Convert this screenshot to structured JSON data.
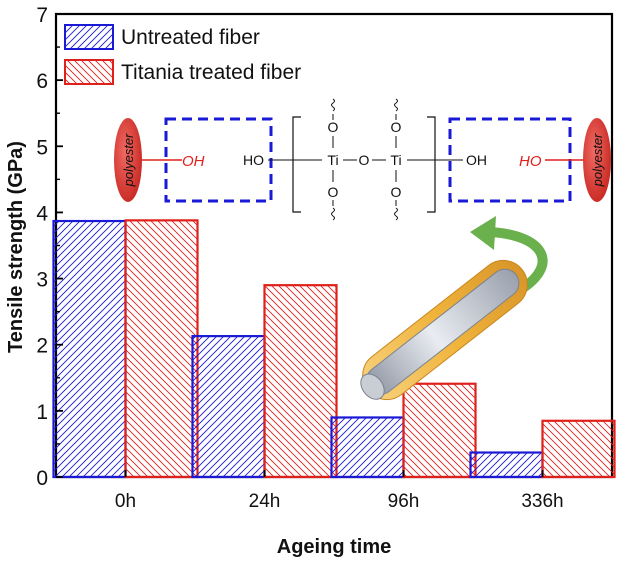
{
  "chart_data": {
    "type": "bar",
    "categories": [
      "0h",
      "24h",
      "96h",
      "336h"
    ],
    "series": [
      {
        "name": "Untreated fiber",
        "values": [
          3.87,
          2.13,
          0.9,
          0.37
        ],
        "color": "#1a1ad6",
        "hatch": "forward"
      },
      {
        "name": "Titania treated fiber",
        "values": [
          3.88,
          2.9,
          1.41,
          0.85
        ],
        "color": "#e0201b",
        "hatch": "backward"
      }
    ],
    "xlabel": "Ageing time",
    "ylabel": "Tensile strength (GPa)",
    "ylim": [
      0,
      7
    ],
    "yticks": [
      0,
      1,
      2,
      3,
      4,
      5,
      6,
      7
    ],
    "legend_position": "top-left",
    "grid": false
  },
  "inset": {
    "left_group": {
      "blob_label": "polyester",
      "bond_label": "OH"
    },
    "right_group": {
      "blob_label": "polyester",
      "bond_label": "HO"
    },
    "formula": {
      "left_end": "HO",
      "right_end": "OH",
      "metal_1": "Ti",
      "metal_2": "Ti",
      "bridge": "O",
      "top_oxygen_1": "O",
      "top_oxygen_2": "O",
      "bottom_oxygen_1": "O",
      "bottom_oxygen_2": "O"
    },
    "fiber_colors": {
      "core": "#a7adb8",
      "coating": "#f0b43c",
      "arrow": "#6ab04c"
    }
  }
}
